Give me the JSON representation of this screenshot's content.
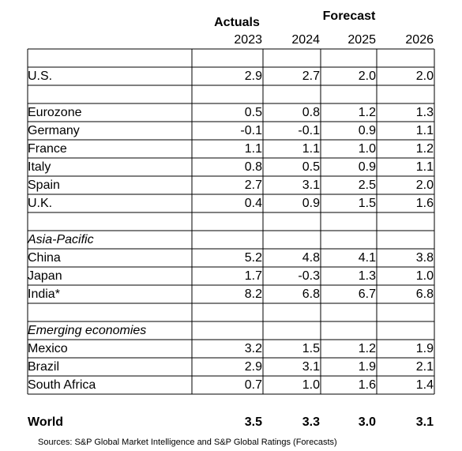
{
  "table": {
    "header": {
      "actuals": "Actuals",
      "forecast": "Forecast",
      "years": [
        "2023",
        "2024",
        "2025",
        "2026"
      ]
    },
    "sections": [
      {
        "rows": [
          {
            "label": "U.S.",
            "values": [
              "2.9",
              "2.7",
              "2.0",
              "2.0"
            ]
          }
        ]
      },
      {
        "rows": [
          {
            "label": "Eurozone",
            "values": [
              "0.5",
              "0.8",
              "1.2",
              "1.3"
            ]
          },
          {
            "label": "Germany",
            "values": [
              "-0.1",
              "-0.1",
              "0.9",
              "1.1"
            ]
          },
          {
            "label": "France",
            "values": [
              "1.1",
              "1.1",
              "1.0",
              "1.2"
            ]
          },
          {
            "label": "Italy",
            "values": [
              "0.8",
              "0.5",
              "0.9",
              "1.1"
            ]
          },
          {
            "label": "Spain",
            "values": [
              "2.7",
              "3.1",
              "2.5",
              "2.0"
            ]
          },
          {
            "label": "U.K.",
            "values": [
              "0.4",
              "0.9",
              "1.5",
              "1.6"
            ]
          }
        ]
      },
      {
        "heading": "Asia-Pacific",
        "rows": [
          {
            "label": "China",
            "values": [
              "5.2",
              "4.8",
              "4.1",
              "3.8"
            ]
          },
          {
            "label": "Japan",
            "values": [
              "1.7",
              "-0.3",
              "1.3",
              "1.0"
            ]
          },
          {
            "label": "India*",
            "values": [
              "8.2",
              "6.8",
              "6.7",
              "6.8"
            ]
          }
        ]
      },
      {
        "heading": "Emerging economies",
        "rows": [
          {
            "label": "Mexico",
            "values": [
              "3.2",
              "1.5",
              "1.2",
              "1.9"
            ]
          },
          {
            "label": "Brazil",
            "values": [
              "2.9",
              "3.1",
              "1.9",
              "2.1"
            ]
          },
          {
            "label": "South Africa",
            "values": [
              "0.7",
              "1.0",
              "1.6",
              "1.4"
            ]
          }
        ]
      }
    ],
    "total": {
      "label": "World",
      "values": [
        "3.5",
        "3.3",
        "3.0",
        "3.1"
      ]
    },
    "source": "Sources: S&P Global Market Intelligence and S&P Global Ratings (Forecasts)"
  }
}
